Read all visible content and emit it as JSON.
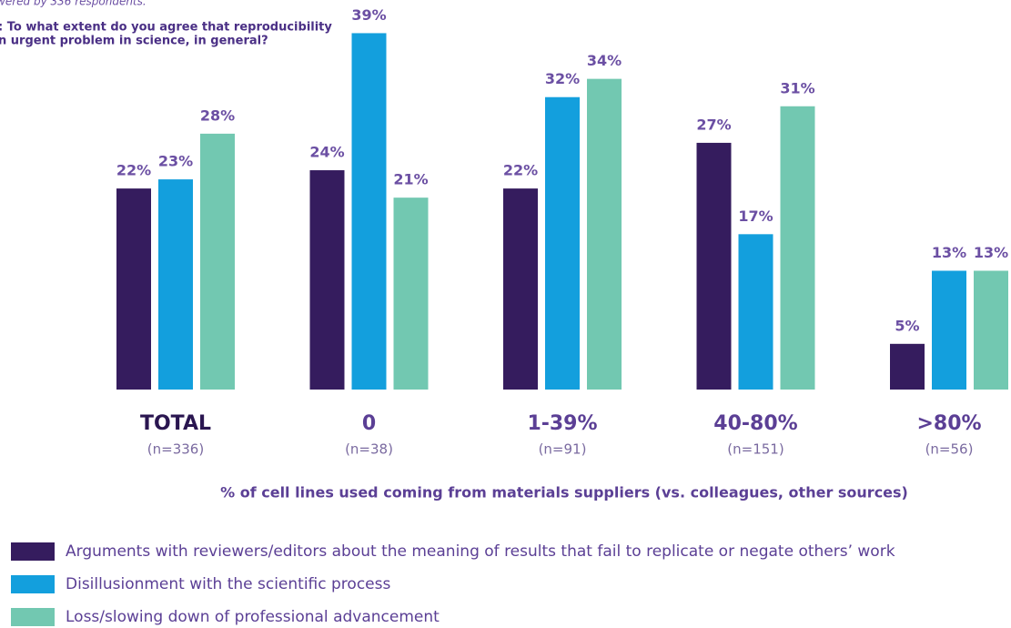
{
  "chart_data": {
    "type": "bar",
    "note": "wered by 336 respondents.",
    "subtitle": [
      ": To what extent do you agree that reproducibility",
      "n urgent problem in science, in general?"
    ],
    "x_label": "% of cell lines used coming from materials suppliers (vs. colleagues, other sources)",
    "categories": [
      "TOTAL",
      "0",
      "1-39%",
      "40-80%",
      ">80%"
    ],
    "category_counts": [
      "(n=336)",
      "(n=38)",
      "(n=91)",
      "(n=151)",
      "(n=56)"
    ],
    "series": [
      {
        "name": "Arguments with reviewers/editors about the meaning of results that fail to replicate or negate others’ work",
        "color": "#351c5e",
        "values": [
          22,
          24,
          22,
          27,
          5
        ],
        "value_labels": [
          "22%",
          "24%",
          "22%",
          "27%",
          "5%"
        ]
      },
      {
        "name": "Disillusionment with the scientific process",
        "color": "#139fdd",
        "values": [
          23,
          39,
          32,
          17,
          13
        ],
        "value_labels": [
          "23%",
          "39%",
          "32%",
          "17%",
          "13%"
        ]
      },
      {
        "name": "Loss/slowing down of professional advancement",
        "color": "#72c8b1",
        "values": [
          28,
          21,
          34,
          31,
          13
        ],
        "value_labels": [
          "28%",
          "21%",
          "34%",
          "31%",
          "13%"
        ]
      }
    ]
  }
}
